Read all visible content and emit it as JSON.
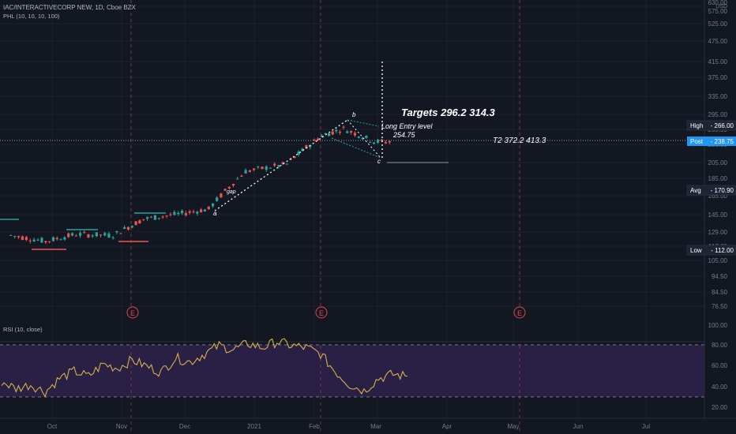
{
  "header": {
    "symbol": "IAC/INTERACTIVECORP NEW, 1D, Cboe BZX",
    "indicator": "PHL (10, 10, 10, 100)"
  },
  "rsi": {
    "label": "RSI (10, close)",
    "ticks": [
      "100.00",
      "80.00",
      "60.00",
      "40.00",
      "20.00"
    ],
    "bands": [
      70,
      30
    ]
  },
  "price_axis": {
    "ticks": [
      "630.00",
      "575.00",
      "525.00",
      "475.00",
      "415.00",
      "375.00",
      "335.00",
      "295.00",
      "265.00",
      "235.00",
      "205.00",
      "185.00",
      "165.00",
      "145.00",
      "129.00",
      "117.00",
      "105.00",
      "94.50",
      "84.50",
      "76.50"
    ],
    "currency": "USD",
    "badges": [
      {
        "label": "High",
        "value": "266.00",
        "color": "#131722"
      },
      {
        "label": "Post",
        "value": "238.75",
        "color": "#2196f3"
      },
      {
        "label": "Avg",
        "value": "170.90",
        "color": "#131722"
      },
      {
        "label": "Low",
        "value": "112.00",
        "color": "#131722"
      }
    ]
  },
  "time_axis": [
    "Oct",
    "Nov",
    "Dec",
    "2021",
    "Feb",
    "Mar",
    "Apr",
    "May",
    "Jun",
    "Jul"
  ],
  "earnings_marker": "E",
  "annotations": {
    "targets": "Targets  296.2  314.3",
    "entry_label": "Long Entry level",
    "entry_value": "254.75",
    "t2": "T2  372.2  413.3",
    "point_b": "b",
    "point_c": "c",
    "point_a": "a",
    "gap": "gap"
  },
  "colors": {
    "background": "#131722",
    "up": "#26a69a",
    "down": "#ef5350",
    "rsi_line": "#d4b24c",
    "rsi_fill": "#2a1f45",
    "grid": "#1f2330",
    "earnings": "#e0474c"
  },
  "chart_data": {
    "type": "candlestick",
    "log_scale": true,
    "x_range_months": [
      "Sep 2020",
      "Jul 2021"
    ],
    "y_range": [
      70,
      680
    ],
    "price_trend": [
      {
        "date": "2020-09-15",
        "close": 125
      },
      {
        "date": "2020-10-01",
        "close": 120
      },
      {
        "date": "2020-10-15",
        "close": 126
      },
      {
        "date": "2020-11-01",
        "close": 125
      },
      {
        "date": "2020-11-15",
        "close": 140
      },
      {
        "date": "2020-12-01",
        "close": 145
      },
      {
        "date": "2020-12-15",
        "close": 150
      },
      {
        "date": "2021-01-01",
        "close": 195
      },
      {
        "date": "2021-01-20",
        "close": 205
      },
      {
        "date": "2021-02-05",
        "close": 250
      },
      {
        "date": "2021-02-15",
        "close": 262
      },
      {
        "date": "2021-03-01",
        "close": 240
      },
      {
        "date": "2021-03-10",
        "close": 238.75
      }
    ],
    "rsi_series": [
      45,
      38,
      42,
      35,
      48,
      55,
      50,
      62,
      58,
      66,
      60,
      54,
      68,
      64,
      72,
      80,
      76,
      82,
      78,
      84,
      80,
      78,
      72,
      55,
      42,
      36,
      48,
      52,
      50
    ],
    "rsi_ylim": [
      0,
      100
    ]
  }
}
